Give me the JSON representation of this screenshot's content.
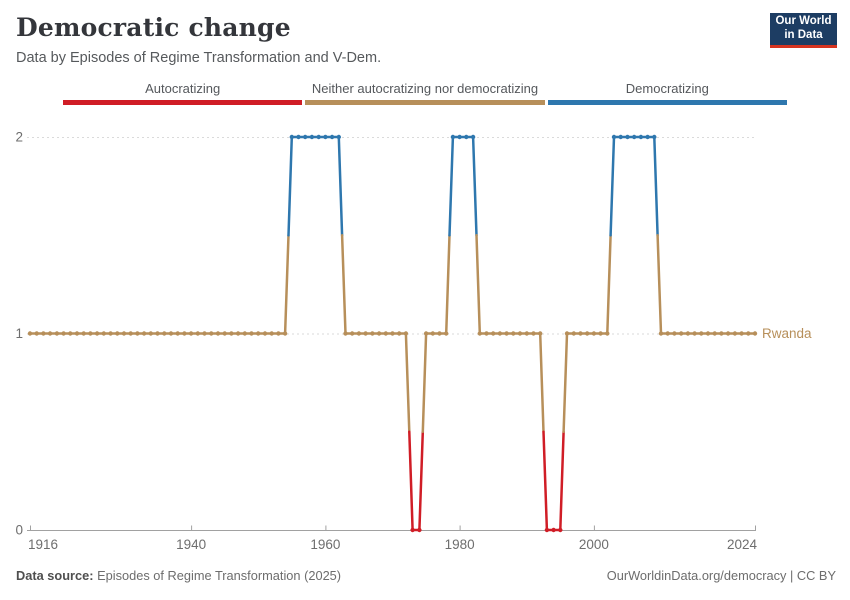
{
  "header": {
    "title": "Democratic change",
    "subtitle": "Data by Episodes of Regime Transformation and V-Dem."
  },
  "logo": {
    "line1": "Our World",
    "line2": "in Data",
    "bg": "#1d3d63",
    "accent": "#d63420"
  },
  "legend": [
    {
      "label": "Autocratizing",
      "color": "#d01d26"
    },
    {
      "label": "Neither autocratizing nor democratizing",
      "color": "#b78f5a"
    },
    {
      "label": "Democratizing",
      "color": "#2e77ae"
    }
  ],
  "chart_data": {
    "type": "line",
    "title": "Democratic change",
    "series_name": "Rwanda",
    "end_label": "Rwanda",
    "x_ticks": [
      1916,
      1940,
      1960,
      1980,
      2000,
      2024
    ],
    "y_ticks": [
      0,
      1,
      2
    ],
    "xlim": [
      1916,
      2024
    ],
    "ylim": [
      0,
      2
    ],
    "grid": "dashed horizontal gridlines at y=1 and y=2, solid axis at y=0",
    "legend_position": "top",
    "value_colors": {
      "0": "#d01d26",
      "1": "#b78f5a",
      "2": "#2e77ae"
    },
    "value_meanings": {
      "0": "Autocratizing",
      "1": "Neither autocratizing nor democratizing",
      "2": "Democratizing"
    },
    "segments": [
      {
        "start": 1916,
        "end": 1954,
        "value": 1
      },
      {
        "start": 1955,
        "end": 1962,
        "value": 2
      },
      {
        "start": 1963,
        "end": 1972,
        "value": 1
      },
      {
        "start": 1973,
        "end": 1974,
        "value": 0
      },
      {
        "start": 1975,
        "end": 1978,
        "value": 1
      },
      {
        "start": 1979,
        "end": 1982,
        "value": 2
      },
      {
        "start": 1983,
        "end": 1992,
        "value": 1
      },
      {
        "start": 1993,
        "end": 1995,
        "value": 0
      },
      {
        "start": 1996,
        "end": 2002,
        "value": 1
      },
      {
        "start": 2003,
        "end": 2009,
        "value": 2
      },
      {
        "start": 2010,
        "end": 2024,
        "value": 1
      }
    ]
  },
  "footer": {
    "source_label": "Data source:",
    "source_text": "Episodes of Regime Transformation (2025)",
    "credit": "OurWorldinData.org/democracy | CC BY"
  }
}
